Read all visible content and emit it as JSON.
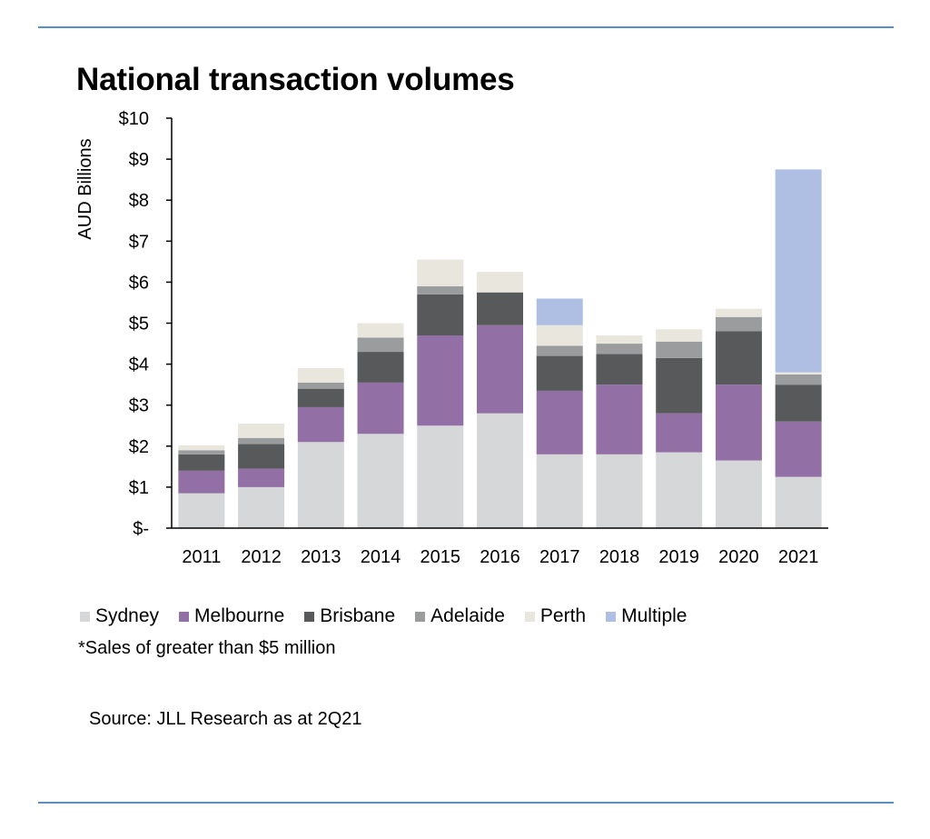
{
  "chart_data": {
    "type": "bar",
    "stacked": true,
    "title": "National transaction volumes",
    "ylabel": "AUD Billions",
    "xlabel": "",
    "ylim": [
      0,
      10
    ],
    "y_ticks": [
      {
        "value": 0,
        "label": "$-"
      },
      {
        "value": 1,
        "label": "$1"
      },
      {
        "value": 2,
        "label": "$2"
      },
      {
        "value": 3,
        "label": "$3"
      },
      {
        "value": 4,
        "label": "$4"
      },
      {
        "value": 5,
        "label": "$5"
      },
      {
        "value": 6,
        "label": "$6"
      },
      {
        "value": 7,
        "label": "$7"
      },
      {
        "value": 8,
        "label": "$8"
      },
      {
        "value": 9,
        "label": "$9"
      },
      {
        "value": 10,
        "label": "$10"
      }
    ],
    "grid": false,
    "legend_position": "bottom-left",
    "categories": [
      "2011",
      "2012",
      "2013",
      "2014",
      "2015",
      "2016",
      "2017",
      "2018",
      "2019",
      "2020",
      "2021"
    ],
    "series": [
      {
        "name": "Sydney",
        "color": "#d6d7d9",
        "values": [
          0.85,
          1.0,
          2.1,
          2.3,
          2.5,
          2.8,
          1.8,
          1.8,
          1.85,
          1.65,
          1.25
        ]
      },
      {
        "name": "Melbourne",
        "color": "#9270a6",
        "values": [
          0.55,
          0.45,
          0.85,
          1.25,
          2.2,
          2.15,
          1.55,
          1.7,
          0.95,
          1.85,
          1.35
        ]
      },
      {
        "name": "Brisbane",
        "color": "#58595b",
        "values": [
          0.4,
          0.6,
          0.45,
          0.75,
          1.0,
          0.8,
          0.85,
          0.75,
          1.35,
          1.3,
          0.9
        ]
      },
      {
        "name": "Adelaide",
        "color": "#9b9c9e",
        "values": [
          0.1,
          0.15,
          0.15,
          0.35,
          0.2,
          0.0,
          0.25,
          0.25,
          0.4,
          0.35,
          0.25
        ]
      },
      {
        "name": "Perth",
        "color": "#e9e6de",
        "values": [
          0.12,
          0.35,
          0.35,
          0.35,
          0.65,
          0.5,
          0.5,
          0.2,
          0.3,
          0.2,
          0.05
        ]
      },
      {
        "name": "Multiple",
        "color": "#afbfe4",
        "values": [
          0,
          0,
          0,
          0,
          0,
          0,
          0.65,
          0,
          0,
          0,
          4.95
        ]
      }
    ]
  },
  "footnote": "*Sales of greater than $5 million",
  "source": "Source: JLL Research as at 2Q21"
}
